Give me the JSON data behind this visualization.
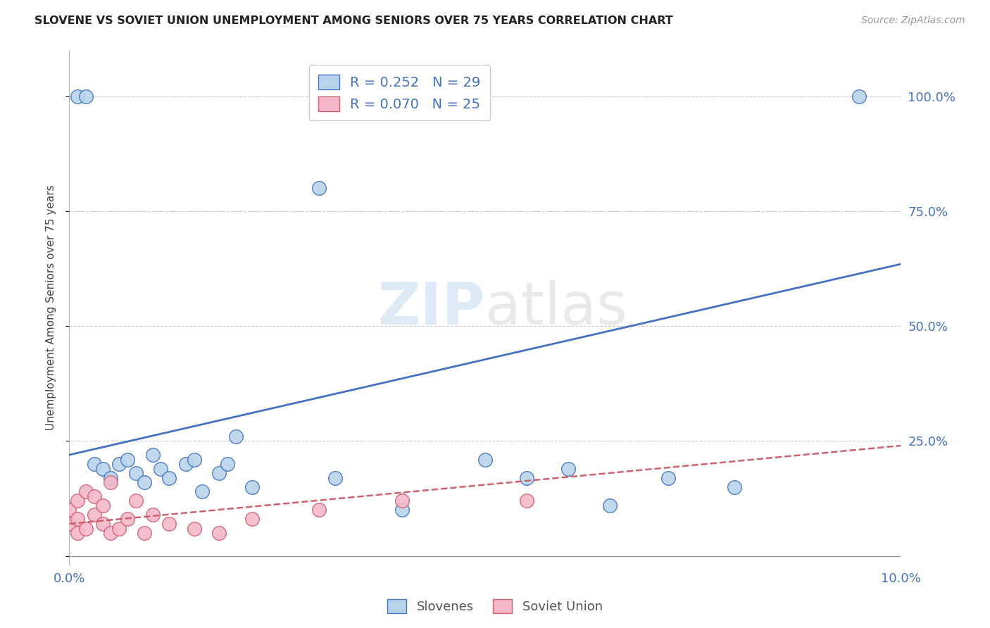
{
  "title": "SLOVENE VS SOVIET UNION UNEMPLOYMENT AMONG SENIORS OVER 75 YEARS CORRELATION CHART",
  "source": "Source: ZipAtlas.com",
  "ylabel": "Unemployment Among Seniors over 75 years",
  "y_ticks": [
    0.0,
    0.25,
    0.5,
    0.75,
    1.0
  ],
  "y_tick_labels": [
    "",
    "25.0%",
    "50.0%",
    "75.0%",
    "100.0%"
  ],
  "x_ticks": [
    0.0,
    0.02,
    0.04,
    0.06,
    0.08,
    0.1
  ],
  "xlim": [
    0.0,
    0.1
  ],
  "ylim": [
    -0.02,
    1.1
  ],
  "slovene_R": 0.252,
  "slovene_N": 29,
  "soviet_R": 0.07,
  "soviet_N": 25,
  "slovene_color": "#b8d4ec",
  "slovene_line_color": "#4472c4",
  "soviet_color": "#f4b8c8",
  "soviet_line_color": "#d06070",
  "background_color": "#ffffff",
  "slovene_x": [
    0.001,
    0.002,
    0.003,
    0.004,
    0.005,
    0.006,
    0.007,
    0.008,
    0.009,
    0.01,
    0.011,
    0.012,
    0.014,
    0.015,
    0.016,
    0.018,
    0.019,
    0.02,
    0.022,
    0.03,
    0.032,
    0.04,
    0.05,
    0.055,
    0.06,
    0.065,
    0.072,
    0.08,
    0.095
  ],
  "slovene_y": [
    1.0,
    1.0,
    0.2,
    0.19,
    0.17,
    0.2,
    0.21,
    0.18,
    0.16,
    0.22,
    0.19,
    0.17,
    0.2,
    0.21,
    0.14,
    0.18,
    0.2,
    0.26,
    0.15,
    0.8,
    0.17,
    0.1,
    0.21,
    0.17,
    0.19,
    0.11,
    0.17,
    0.15,
    1.0
  ],
  "soviet_x": [
    0.0,
    0.0,
    0.001,
    0.001,
    0.001,
    0.002,
    0.002,
    0.003,
    0.003,
    0.004,
    0.004,
    0.005,
    0.005,
    0.006,
    0.007,
    0.008,
    0.009,
    0.01,
    0.012,
    0.015,
    0.018,
    0.022,
    0.03,
    0.04,
    0.055
  ],
  "soviet_y": [
    0.07,
    0.1,
    0.05,
    0.08,
    0.12,
    0.06,
    0.14,
    0.09,
    0.13,
    0.07,
    0.11,
    0.05,
    0.16,
    0.06,
    0.08,
    0.12,
    0.05,
    0.09,
    0.07,
    0.06,
    0.05,
    0.08,
    0.1,
    0.12,
    0.12
  ],
  "slovene_trend_x0": 0.0,
  "slovene_trend_y0": 0.22,
  "slovene_trend_x1": 0.1,
  "slovene_trend_y1": 0.635,
  "soviet_trend_x0": 0.0,
  "soviet_trend_y0": 0.07,
  "soviet_trend_x1": 0.1,
  "soviet_trend_y1": 0.24
}
